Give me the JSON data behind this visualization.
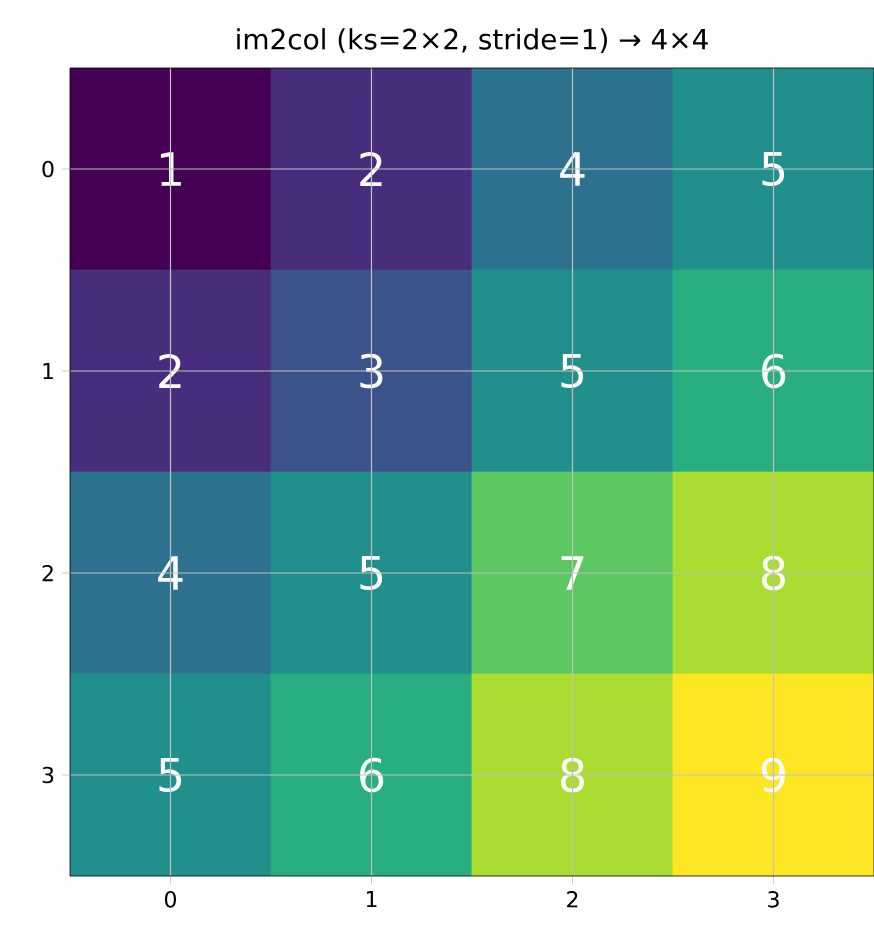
{
  "chart_data": {
    "type": "heatmap",
    "title": "im2col (ks=2×2, stride=1) → 4×4",
    "categories": [
      "0",
      "1",
      "2",
      "3"
    ],
    "y_categories": [
      "0",
      "1",
      "2",
      "3"
    ],
    "cells": [
      [
        1,
        2,
        4,
        5
      ],
      [
        2,
        3,
        5,
        6
      ],
      [
        4,
        5,
        7,
        8
      ],
      [
        5,
        6,
        8,
        9
      ]
    ],
    "data_labels": true,
    "grid": true
  }
}
